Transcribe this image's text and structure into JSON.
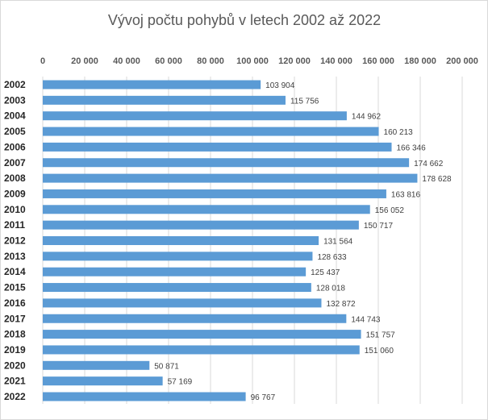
{
  "chart_data": {
    "type": "bar",
    "orientation": "horizontal",
    "title": "Vývoj počtu pohybů v letech 2002 až 2022",
    "xlabel": "",
    "ylabel": "",
    "xlim": [
      0,
      200000
    ],
    "x_tick_labels": [
      "0",
      "20 000",
      "40 000",
      "60 000",
      "80 000",
      "100 000",
      "120 000",
      "140 000",
      "160 000",
      "180 000",
      "200 000"
    ],
    "x_axis_position": "top",
    "grid": true,
    "legend": "none",
    "bar_color": "#5b9bd5",
    "categories": [
      "2002",
      "2003",
      "2004",
      "2005",
      "2006",
      "2007",
      "2008",
      "2009",
      "2010",
      "2011",
      "2012",
      "2013",
      "2014",
      "2015",
      "2016",
      "2017",
      "2018",
      "2019",
      "2020",
      "2021",
      "2022"
    ],
    "values": [
      103904,
      115756,
      144962,
      160213,
      166346,
      174662,
      178628,
      163816,
      156052,
      150717,
      131564,
      128633,
      125437,
      128018,
      132872,
      144743,
      151757,
      151060,
      50871,
      57169,
      96767
    ],
    "value_labels": [
      "103 904",
      "115 756",
      "144 962",
      "160 213",
      "166 346",
      "174 662",
      "178 628",
      "163 816",
      "156 052",
      "150 717",
      "131 564",
      "128 633",
      "125 437",
      "128 018",
      "132 872",
      "144 743",
      "151 757",
      "151 060",
      "50 871",
      "57 169",
      "96 767"
    ]
  }
}
